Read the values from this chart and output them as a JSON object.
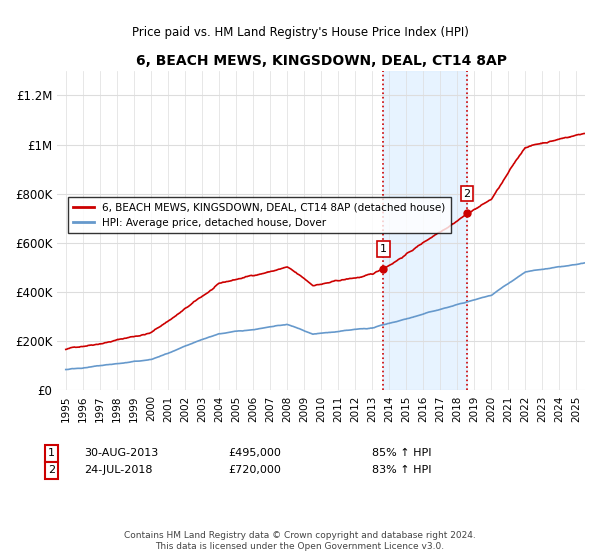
{
  "title": "6, BEACH MEWS, KINGSDOWN, DEAL, CT14 8AP",
  "subtitle": "Price paid vs. HM Land Registry's House Price Index (HPI)",
  "ylabel_ticks": [
    "£0",
    "£200K",
    "£400K",
    "£600K",
    "£800K",
    "£1M",
    "£1.2M"
  ],
  "ytick_vals": [
    0,
    200000,
    400000,
    600000,
    800000,
    1000000,
    1200000
  ],
  "ylim": [
    0,
    1300000
  ],
  "sale1_date": 2013.66,
  "sale1_price": 495000,
  "sale1_label": "1",
  "sale2_date": 2018.56,
  "sale2_price": 720000,
  "sale2_label": "2",
  "shaded_xmin": 2013.66,
  "shaded_xmax": 2018.56,
  "red_line_color": "#cc0000",
  "blue_line_color": "#6699cc",
  "shade_color": "#ddeeff",
  "vline_color": "#cc0000",
  "legend_label1": "6, BEACH MEWS, KINGSDOWN, DEAL, CT14 8AP (detached house)",
  "legend_label2": "HPI: Average price, detached house, Dover",
  "annotation1": "30-AUG-2013    £495,000      85% ↑ HPI",
  "annotation2": "24-JUL-2018    £720,000      83% ↑ HPI",
  "footer": "Contains HM Land Registry data © Crown copyright and database right 2024.\nThis data is licensed under the Open Government Licence v3.0.",
  "xlim_min": 1994.5,
  "xlim_max": 2025.5
}
